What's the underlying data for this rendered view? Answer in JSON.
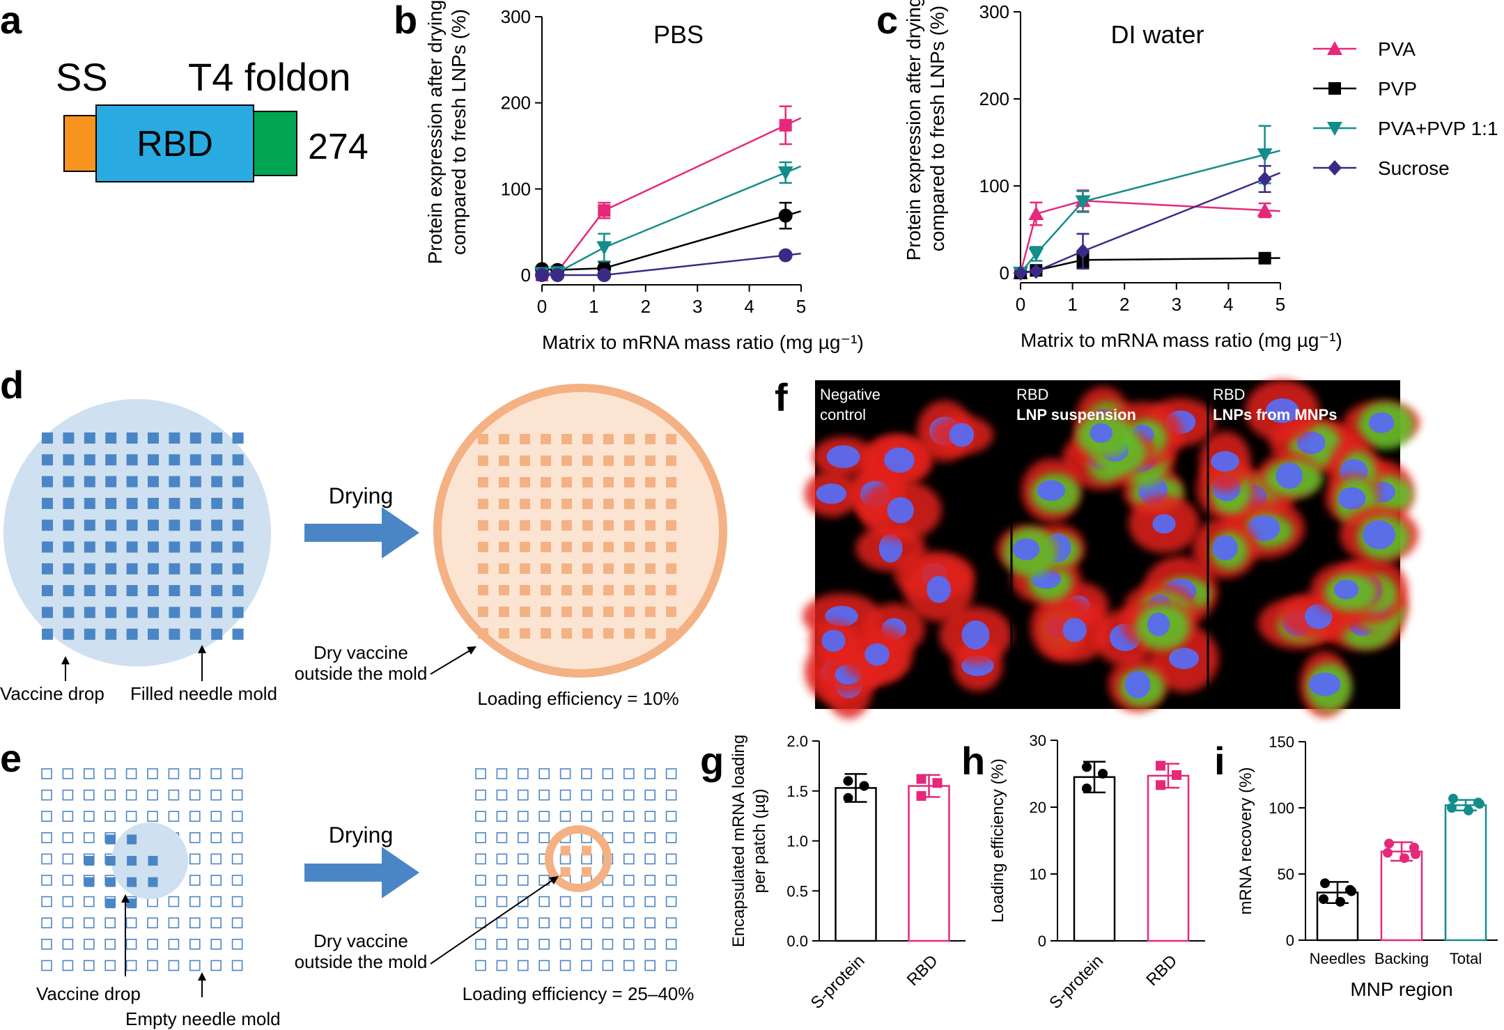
{
  "figure": {
    "panel_letters": [
      "a",
      "b",
      "c",
      "d",
      "e",
      "f",
      "g",
      "h",
      "i"
    ]
  },
  "panel_a": {
    "ss_label": "SS",
    "t4_label": "T4 foldon",
    "rbd_label": "RBD",
    "length_label": "274",
    "colors": {
      "ss": "#f7941d",
      "rbd": "#29abe2",
      "t4": "#00a651"
    }
  },
  "legend": {
    "entries": [
      {
        "name": "PVA",
        "color": "#e6287a",
        "marker": "triangle-up"
      },
      {
        "name": "PVP",
        "color": "#000000",
        "marker": "square"
      },
      {
        "name": "PVA+PVP 1:1",
        "color": "#138d8a",
        "marker": "triangle-down"
      },
      {
        "name": "Sucrose",
        "color": "#3b2a85",
        "marker": "diamond"
      }
    ]
  },
  "panel_d": {
    "arrow_label": "Drying",
    "vaccine_drop": "Vaccine drop",
    "filled_mold": "Filled needle mold",
    "dry_vaccine_1": "Dry vaccine",
    "dry_vaccine_2": "outside the mold",
    "loading": "Loading efficiency = 10%"
  },
  "panel_e": {
    "arrow_label": "Drying",
    "vaccine_drop": "Vaccine drop",
    "empty_mold": "Empty needle mold",
    "dry_vaccine_1": "Dry vaccine",
    "dry_vaccine_2": "outside the mold",
    "loading": "Loading efficiency = 25–40%"
  },
  "panel_f": {
    "image_1_line1": "Negative",
    "image_1_line2": "control",
    "image_2_line1": "RBD",
    "image_2_line2": "LNP suspension",
    "image_3_line1": "RBD",
    "image_3_line2": "LNPs from MNPs"
  },
  "chart_data": [
    {
      "panel": "b",
      "type": "line",
      "title": "PBS",
      "xlabel": "Matrix to mRNA mass ratio (mg µg⁻¹)",
      "ylabel_line1": "Protein expression after drying",
      "ylabel_line2": "compared to fresh LNPs (%)",
      "xlim": [
        0,
        5
      ],
      "ylim": [
        0,
        300
      ],
      "xticks": [
        0,
        1,
        2,
        3,
        4,
        5
      ],
      "yticks": [
        0,
        100,
        200,
        300
      ],
      "series": [
        {
          "name": "PVA",
          "color": "#e6287a",
          "marker": "square",
          "x": [
            0,
            0.3,
            1.2,
            4.7
          ],
          "y": [
            0,
            4,
            75,
            174
          ],
          "err": [
            0,
            0,
            9,
            22
          ]
        },
        {
          "name": "PVP",
          "color": "#000000",
          "marker": "circle",
          "x": [
            0,
            0.3,
            1.2,
            4.7
          ],
          "y": [
            7,
            6,
            8,
            69
          ],
          "err": [
            0,
            0,
            7,
            15
          ]
        },
        {
          "name": "PVA+PVP 1:1",
          "color": "#138d8a",
          "marker": "triangle-down",
          "x": [
            0,
            0.3,
            1.2,
            4.7
          ],
          "y": [
            2,
            3,
            32,
            119
          ],
          "err": [
            0,
            0,
            16,
            12
          ]
        },
        {
          "name": "Sucrose",
          "color": "#3b2a85",
          "marker": "circle",
          "x": [
            0,
            0.3,
            1.2,
            4.7
          ],
          "y": [
            0,
            0,
            0,
            23
          ],
          "err": [
            0,
            0,
            0,
            0
          ]
        }
      ]
    },
    {
      "panel": "c",
      "type": "line",
      "title": "DI water",
      "xlabel": "Matrix to mRNA mass ratio (mg µg⁻¹)",
      "ylabel_line1": "Protein expression after drying",
      "ylabel_line2": "compared to fresh LNPs (%)",
      "xlim": [
        0,
        5
      ],
      "ylim": [
        0,
        300
      ],
      "xticks": [
        0,
        1,
        2,
        3,
        4,
        5
      ],
      "yticks": [
        0,
        100,
        200,
        300
      ],
      "series": [
        {
          "name": "PVA",
          "color": "#e6287a",
          "marker": "triangle-up",
          "x": [
            0,
            0.3,
            1.2,
            4.7
          ],
          "y": [
            0,
            68,
            83,
            72
          ],
          "err": [
            0,
            13,
            12,
            8
          ]
        },
        {
          "name": "PVP",
          "color": "#000000",
          "marker": "square",
          "x": [
            0,
            0.3,
            1.2,
            4.7
          ],
          "y": [
            0,
            3,
            15,
            17
          ],
          "err": [
            0,
            0,
            8,
            3
          ]
        },
        {
          "name": "PVA+PVP 1:1",
          "color": "#138d8a",
          "marker": "triangle-down",
          "x": [
            0,
            0.3,
            1.2,
            4.7
          ],
          "y": [
            0,
            22,
            82,
            136
          ],
          "err": [
            0,
            8,
            12,
            33
          ]
        },
        {
          "name": "Sucrose",
          "color": "#3b2a85",
          "marker": "diamond",
          "x": [
            0,
            0.3,
            1.2,
            4.7
          ],
          "y": [
            0,
            2,
            25,
            108
          ],
          "err": [
            0,
            0,
            20,
            15
          ]
        }
      ]
    },
    {
      "panel": "g",
      "type": "bar",
      "ylabel_line1": "Encapsulated mRNA loading",
      "ylabel_line2": "per patch (µg)",
      "categories": [
        "S-protein",
        "RBD"
      ],
      "colors": [
        "#000000",
        "#e6287a"
      ],
      "values": [
        1.53,
        1.55
      ],
      "err": [
        0.14,
        0.11
      ],
      "points": [
        [
          1.6,
          1.43,
          1.55
        ],
        [
          1.62,
          1.45,
          1.58
        ]
      ],
      "ylim": [
        0,
        2.0
      ],
      "yticks": [
        0.0,
        0.5,
        1.0,
        1.5,
        2.0
      ],
      "ytick_labels": [
        "0.0",
        "0.5",
        "1.0",
        "1.5",
        "2.0"
      ]
    },
    {
      "panel": "h",
      "type": "bar",
      "ylabel_line1": "Loading efficiency (%)",
      "categories": [
        "S-protein",
        "RBD"
      ],
      "colors": [
        "#000000",
        "#e6287a"
      ],
      "values": [
        24.5,
        24.7
      ],
      "err": [
        2.3,
        1.8
      ],
      "points": [
        [
          26,
          22.8,
          25
        ],
        [
          26.2,
          23.3,
          24.8
        ]
      ],
      "ylim": [
        0,
        30
      ],
      "yticks": [
        0,
        10,
        20,
        30
      ],
      "ytick_labels": [
        "0",
        "10",
        "20",
        "30"
      ]
    },
    {
      "panel": "i",
      "type": "bar",
      "ylabel_line1": "mRNA recovery (%)",
      "xlabel": "MNP region",
      "categories": [
        "Needles",
        "Backing",
        "Total"
      ],
      "colors": [
        "#000000",
        "#e6287a",
        "#138d8a"
      ],
      "values": [
        36,
        67,
        102
      ],
      "err": [
        8,
        7,
        4
      ],
      "points": [
        [
          43,
          38,
          31,
          29,
          37
        ],
        [
          73,
          70,
          66,
          62,
          65
        ],
        [
          107,
          104,
          100,
          98,
          103
        ]
      ],
      "ylim": [
        0,
        150
      ],
      "yticks": [
        0,
        50,
        100,
        150
      ],
      "ytick_labels": [
        "0",
        "50",
        "100",
        "150"
      ]
    }
  ]
}
